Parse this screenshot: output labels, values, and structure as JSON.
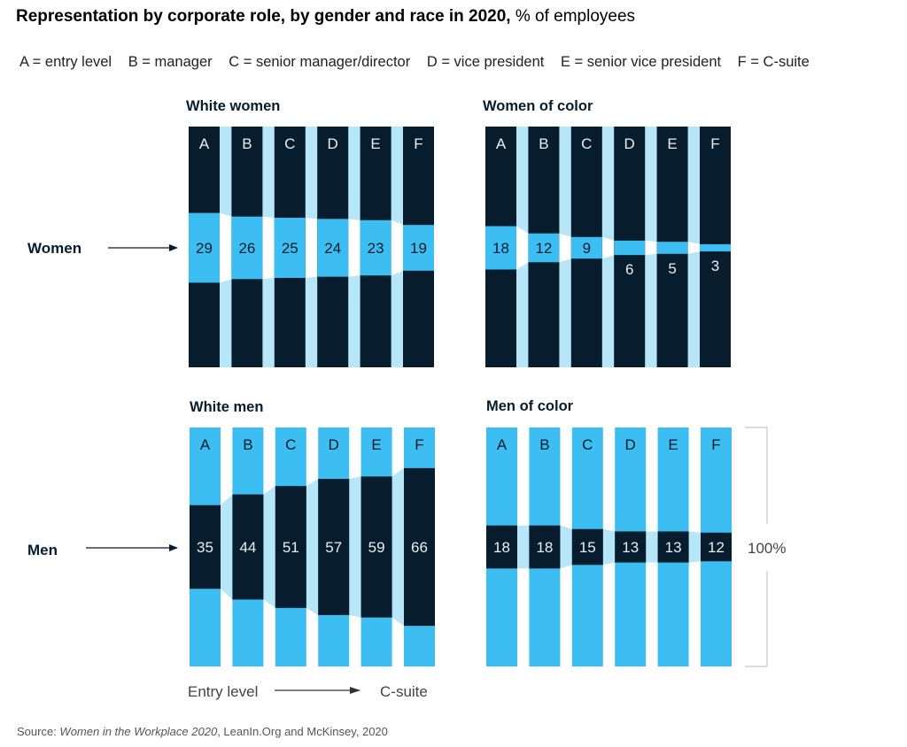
{
  "title": {
    "bold": "Representation by corporate role, by gender and race in 2020,",
    "regular": " % of employees"
  },
  "legend": [
    "A = entry level",
    "B = manager",
    "C = senior manager/director",
    "D = vice president",
    "E = senior vice president",
    "F = C-suite"
  ],
  "row_labels": {
    "women": "Women",
    "men": "Men"
  },
  "axis_note": {
    "start": "Entry level",
    "end": "C-suite"
  },
  "scale_label": "100%",
  "source": {
    "prefix": "Source: ",
    "italic": "Women in the Workplace 2020",
    "suffix": ", LeanIn.Org and McKinsey, 2020"
  },
  "colors": {
    "navy": "#071c2c",
    "cyan": "#3cbef3",
    "light_cyan": "#b8e6f9",
    "white": "#ffffff"
  },
  "chart_data": [
    {
      "type": "bar",
      "title": "White women",
      "row": "women",
      "categories": [
        "A",
        "B",
        "C",
        "D",
        "E",
        "F"
      ],
      "values": [
        29,
        26,
        25,
        24,
        23,
        19
      ],
      "unit": "% of employees",
      "ylim": [
        0,
        100
      ]
    },
    {
      "type": "bar",
      "title": "Women of color",
      "row": "women",
      "categories": [
        "A",
        "B",
        "C",
        "D",
        "E",
        "F"
      ],
      "values": [
        18,
        12,
        9,
        6,
        5,
        3
      ],
      "unit": "% of employees",
      "ylim": [
        0,
        100
      ]
    },
    {
      "type": "bar",
      "title": "White men",
      "row": "men",
      "categories": [
        "A",
        "B",
        "C",
        "D",
        "E",
        "F"
      ],
      "values": [
        35,
        44,
        51,
        57,
        59,
        66
      ],
      "unit": "% of employees",
      "ylim": [
        0,
        100
      ]
    },
    {
      "type": "bar",
      "title": "Men of color",
      "row": "men",
      "categories": [
        "A",
        "B",
        "C",
        "D",
        "E",
        "F"
      ],
      "values": [
        18,
        18,
        15,
        13,
        13,
        12
      ],
      "unit": "% of employees",
      "ylim": [
        0,
        100
      ]
    }
  ]
}
